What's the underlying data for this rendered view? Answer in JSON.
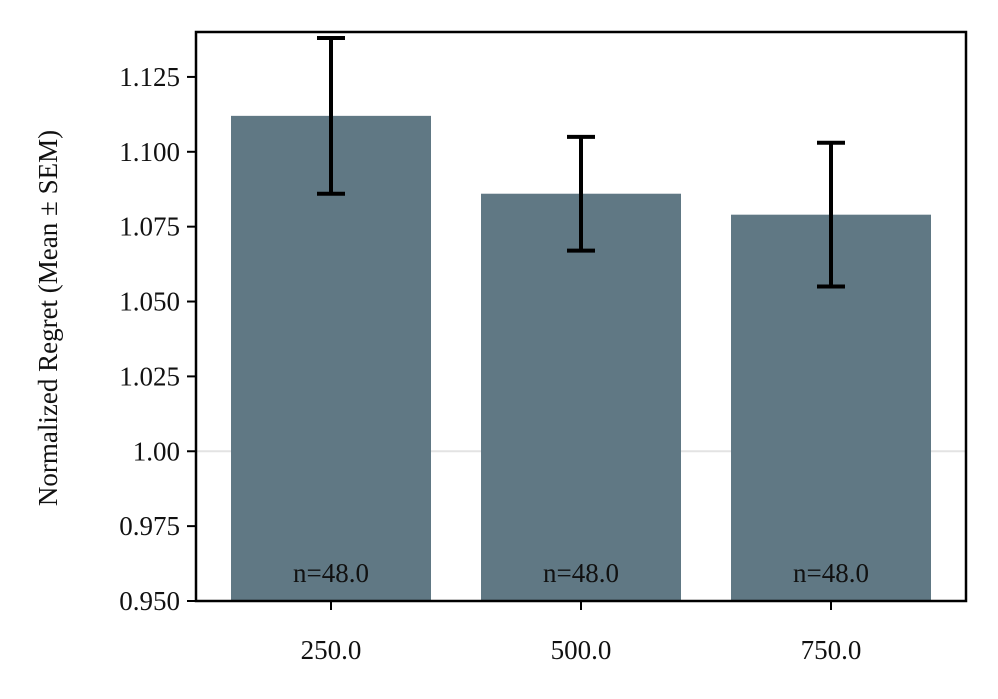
{
  "chart_data": {
    "type": "bar",
    "categories": [
      "250.0",
      "500.0",
      "750.0"
    ],
    "values": [
      1.112,
      1.086,
      1.079
    ],
    "errors": [
      0.026,
      0.019,
      0.024
    ],
    "bar_labels": [
      "n=48.0",
      "n=48.0",
      "n=48.0"
    ],
    "ylabel": "Normalized Regret (Mean ± SEM)",
    "xlabel": "",
    "title": "",
    "ylim": [
      0.95,
      1.14
    ],
    "yticks": [
      0.95,
      0.975,
      1.0,
      1.025,
      1.05,
      1.075,
      1.1,
      1.125
    ],
    "ytick_labels": [
      "0.950",
      "0.975",
      "1.00",
      "1.025",
      "1.050",
      "1.075",
      "1.100",
      "1.125"
    ],
    "reference_line": 1.0,
    "grid": false,
    "colors": {
      "bar": "#607884",
      "error_bar": "#000000",
      "reference_line": "#e3e3e3",
      "axis": "#000000"
    }
  }
}
